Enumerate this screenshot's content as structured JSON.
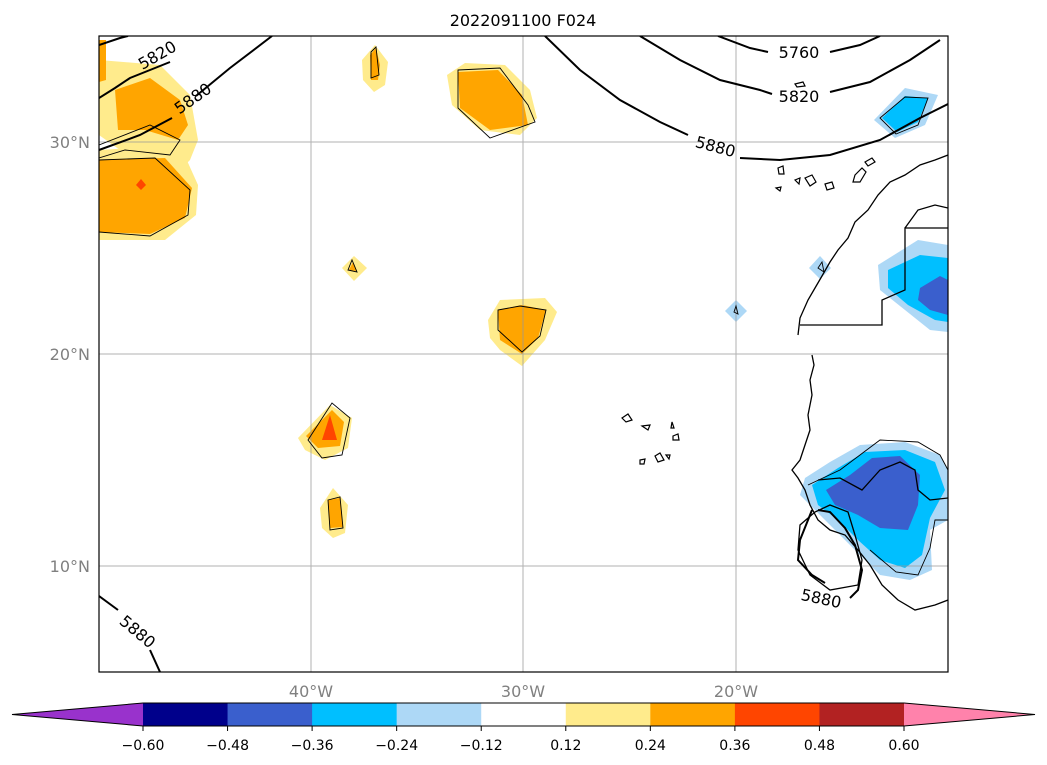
{
  "title": "2022091100 F024",
  "map": {
    "lat_labels": [
      "30°N",
      "20°N",
      "10°N"
    ],
    "lon_labels": [
      "40°W",
      "30°W",
      "20°W"
    ],
    "gridlines": true,
    "extent": {
      "lon": [
        -50,
        -10
      ],
      "lat": [
        5,
        35
      ]
    }
  },
  "contour_labels": [
    "5820",
    "5880",
    "5760",
    "5820",
    "5880",
    "5880",
    "5880"
  ],
  "colorbar": {
    "tick_labels": [
      "−0.60",
      "−0.48",
      "−0.36",
      "−0.24",
      "−0.12",
      "0.12",
      "0.24",
      "0.36",
      "0.48",
      "0.60"
    ],
    "colors": [
      "#9932cc",
      "#00008b",
      "#3a5fcd",
      "#00bfff",
      "#add8f6",
      "#ffffff",
      "#ffeb8c",
      "#ffa500",
      "#ff4500",
      "#b22222",
      "#ff82ab"
    ],
    "extend": "both"
  }
}
